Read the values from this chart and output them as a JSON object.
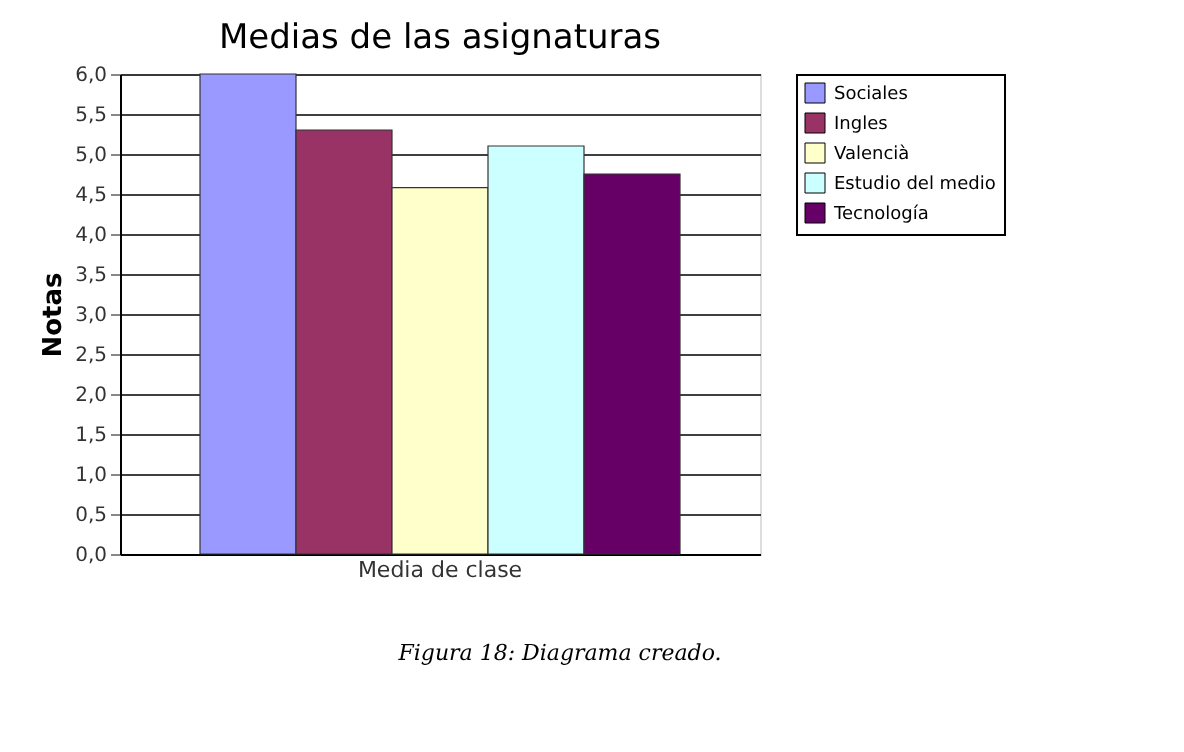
{
  "chart_data": {
    "type": "bar",
    "title": "Medias de las asignaturas",
    "ylabel": "Notas",
    "categories": [
      "Media de clase"
    ],
    "series": [
      {
        "name": "Sociales",
        "color": "#9999ff",
        "values": [
          6.0
        ]
      },
      {
        "name": "Ingles",
        "color": "#993366",
        "values": [
          5.3
        ]
      },
      {
        "name": "Valencià",
        "color": "#ffffcc",
        "values": [
          4.58
        ]
      },
      {
        "name": "Estudio del medio",
        "color": "#ccffff",
        "values": [
          5.1
        ]
      },
      {
        "name": "Tecnología",
        "color": "#660066",
        "values": [
          4.75
        ]
      }
    ],
    "ylim": [
      0,
      6
    ],
    "yticks": [
      {
        "value": 0,
        "label": "0,0"
      },
      {
        "value": 0.5,
        "label": "0,5"
      },
      {
        "value": 1,
        "label": "1,0"
      },
      {
        "value": 1.5,
        "label": "1,5"
      },
      {
        "value": 2,
        "label": "2,0"
      },
      {
        "value": 2.5,
        "label": "2,5"
      },
      {
        "value": 3,
        "label": "3,0"
      },
      {
        "value": 3.5,
        "label": "3,5"
      },
      {
        "value": 4,
        "label": "4,0"
      },
      {
        "value": 4.5,
        "label": "4,5"
      },
      {
        "value": 5,
        "label": "5,0"
      },
      {
        "value": 5.5,
        "label": "5,5"
      },
      {
        "value": 6,
        "label": "6,0"
      }
    ],
    "grid": "y",
    "legend": "right",
    "annotations": [
      "Figura 18: Diagrama creado."
    ]
  }
}
